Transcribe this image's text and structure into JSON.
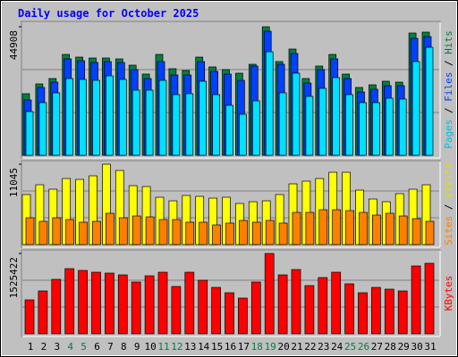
{
  "chart_data": [
    {
      "type": "bar",
      "title": "Daily usage for October 2025",
      "ylim": [
        0,
        44908
      ],
      "yticks": [
        44908
      ],
      "grid": true,
      "legend_separator": " / ",
      "series": [
        {
          "name": "Pages",
          "color": "#00e0ff",
          "label_color": "#00c0e0",
          "values": [
            15281,
            18400,
            21830,
            26820,
            26508,
            26196,
            27756,
            26508,
            22766,
            22766,
            26196,
            21206,
            21518,
            25884,
            21206,
            17464,
            14346,
            19023,
            36176,
            21830,
            28691,
            20583,
            23390,
            27132,
            21206,
            18400,
            18400,
            19959,
            19647,
            32745,
            37735
          ]
        },
        {
          "name": "Files",
          "color": "#0040ff",
          "label_color": "#0040ff",
          "values": [
            19335,
            23701,
            25573,
            33681,
            33057,
            32434,
            32745,
            32434,
            29939,
            26820,
            32745,
            28067,
            28067,
            32745,
            29315,
            28379,
            26196,
            31186,
            43349,
            31810,
            35552,
            25261,
            29939,
            33681,
            26820,
            22142,
            23078,
            24325,
            24325,
            40854,
            41477
          ]
        },
        {
          "name": "Hits",
          "color": "#008040",
          "label_color": "#008040",
          "values": [
            21518,
            24949,
            26820,
            35240,
            34305,
            33993,
            33993,
            33681,
            31498,
            28379,
            35240,
            30250,
            29627,
            34305,
            30874,
            29939,
            28691,
            31810,
            44908,
            32745,
            37111,
            26820,
            31186,
            35240,
            28379,
            23701,
            24637,
            25884,
            25573,
            42725,
            43037
          ]
        }
      ]
    },
    {
      "type": "bar",
      "ylim": [
        0,
        11045
      ],
      "yticks": [
        11045
      ],
      "grid": true,
      "legend_separator": " / ",
      "series": [
        {
          "name": "Sites",
          "color": "#ff8000",
          "label_color": "#ff8000",
          "values": [
            3681,
            3190,
            3681,
            3436,
            3068,
            3190,
            4295,
            3681,
            3926,
            3804,
            3436,
            3436,
            3068,
            3068,
            2699,
            2945,
            3313,
            3068,
            3313,
            2945,
            4417,
            4417,
            4785,
            4785,
            4663,
            4417,
            4049,
            4295,
            3926,
            3558,
            3190
          ]
        },
        {
          "name": "Visits",
          "color": "#ffff00",
          "label_color": "#e0e000",
          "values": [
            6871,
            8221,
            7607,
            9080,
            8957,
            9448,
            11045,
            10184,
            8098,
            7976,
            6503,
            6012,
            6749,
            6626,
            6380,
            6503,
            5644,
            5890,
            6012,
            6871,
            8344,
            8712,
            9080,
            9939,
            9939,
            7485,
            6258,
            5890,
            6994,
            7607,
            8221
          ]
        }
      ]
    },
    {
      "type": "bar",
      "ylim": [
        0,
        1525422
      ],
      "yticks": [
        1525422
      ],
      "grid": true,
      "series": [
        {
          "name": "KBytes",
          "color": "#ff0000",
          "label_color": "#ff0000",
          "values": [
            644062,
            813552,
            1033889,
            1237277,
            1203379,
            1169481,
            1152532,
            1118634,
            983042,
            1101685,
            1169481,
            898297,
            1169481,
            1016940,
            881348,
            779654,
            677960,
            983042,
            1525422,
            1118634,
            1220328,
            915246,
            1067787,
            1169481,
            949144,
            779654,
            881348,
            847450,
            813552,
            1288121,
            1338971
          ]
        }
      ],
      "categories": [
        "1",
        "2",
        "3",
        "4",
        "5",
        "6",
        "7",
        "8",
        "9",
        "10",
        "11",
        "12",
        "13",
        "14",
        "15",
        "16",
        "17",
        "18",
        "19",
        "20",
        "21",
        "22",
        "23",
        "24",
        "25",
        "26",
        "27",
        "28",
        "29",
        "30",
        "31"
      ],
      "label_colors": [
        "#000000",
        "#000000",
        "#000000",
        "#008040",
        "#008040",
        "#000000",
        "#000000",
        "#000000",
        "#000000",
        "#000000",
        "#008040",
        "#008040",
        "#000000",
        "#000000",
        "#000000",
        "#000000",
        "#000000",
        "#008040",
        "#008040",
        "#000000",
        "#000000",
        "#000000",
        "#000000",
        "#000000",
        "#008040",
        "#008040",
        "#000000",
        "#000000",
        "#000000",
        "#000000",
        "#000000"
      ]
    }
  ]
}
